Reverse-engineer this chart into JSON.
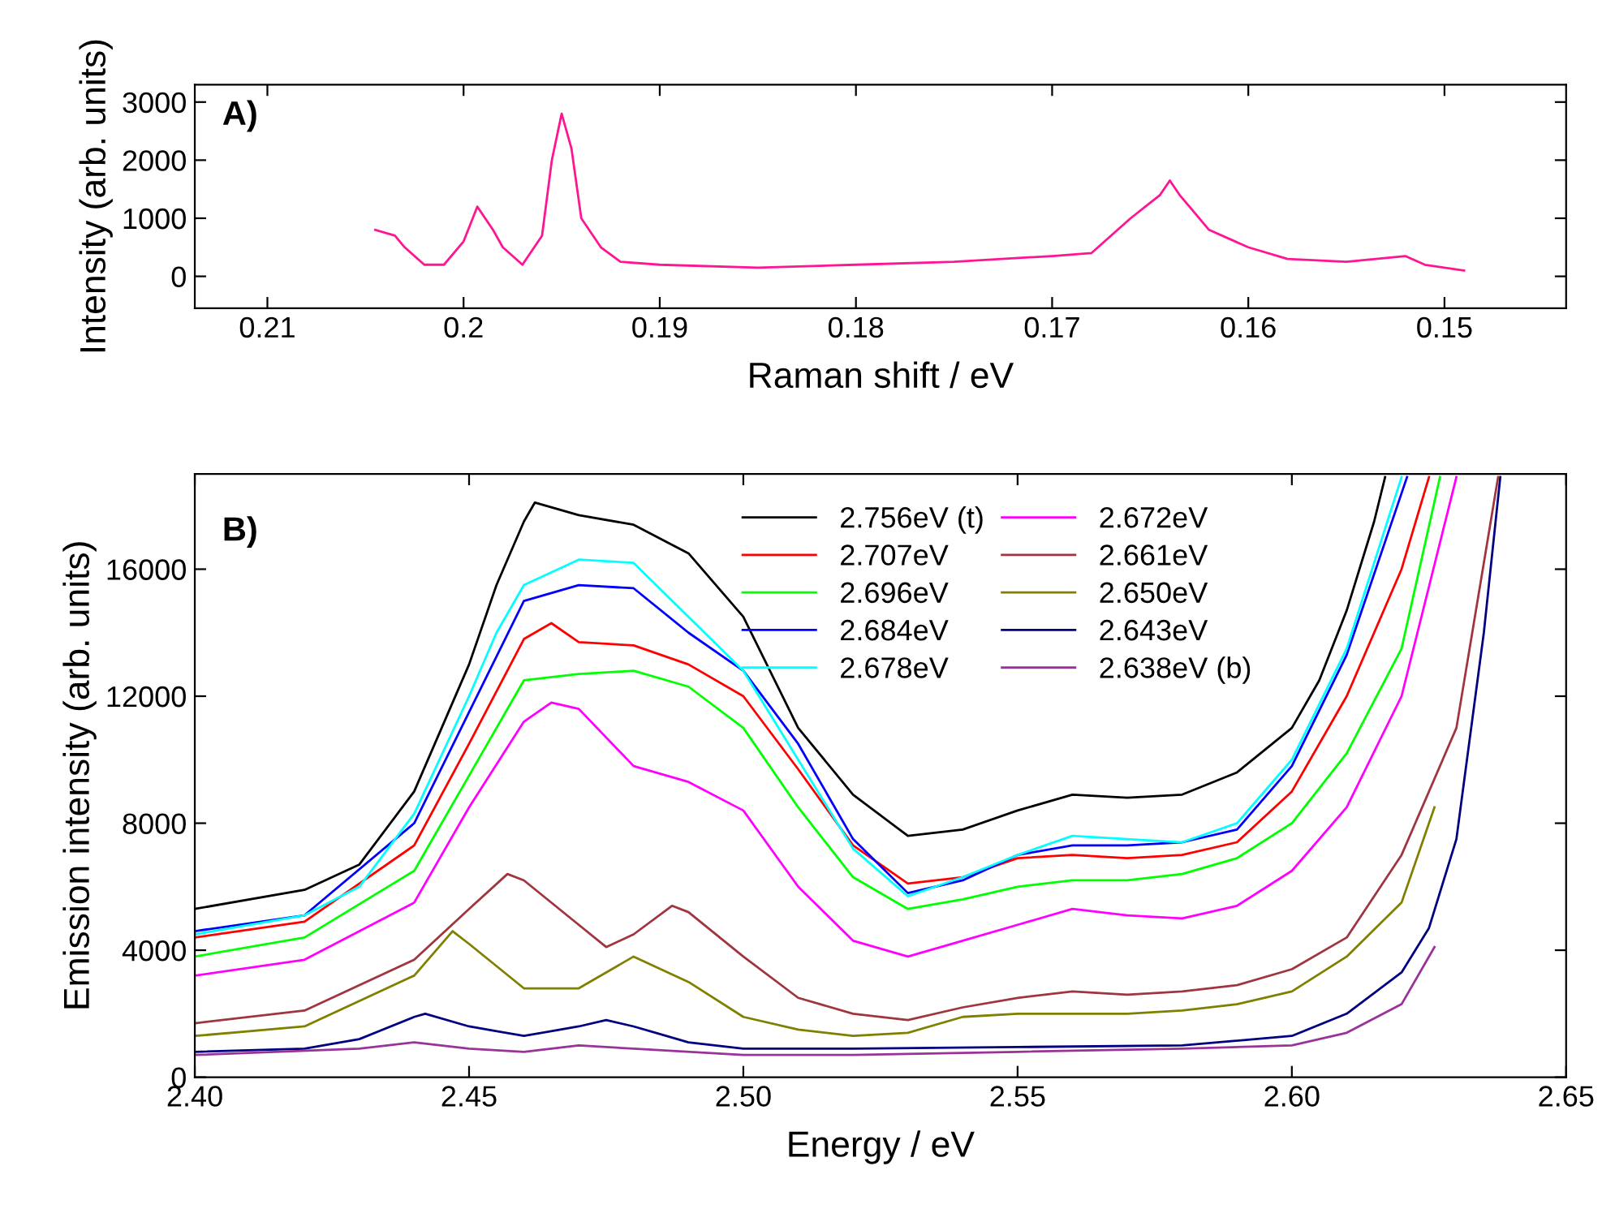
{
  "chart_data": [
    {
      "type": "line",
      "xlabel": "Raman shift / eV",
      "ylabel": "Intensity (arb. units)",
      "annotations": [
        "A)"
      ],
      "xlim": [
        0.2137,
        0.1438
      ],
      "ylim": [
        -550,
        3300
      ],
      "xticks": [
        0.21,
        0.2,
        0.19,
        0.18,
        0.17,
        0.16,
        0.15
      ],
      "yticks": [
        0,
        1000,
        2000,
        3000
      ],
      "grid": false,
      "legend": false,
      "marker": "none",
      "line_style": "solid",
      "series": [
        {
          "color": "#ff1493",
          "x": [
            0.2045,
            0.2035,
            0.203,
            0.202,
            0.201,
            0.2,
            0.1993,
            0.1985,
            0.198,
            0.197,
            0.196,
            0.1955,
            0.195,
            0.1945,
            0.194,
            0.193,
            0.192,
            0.19,
            0.185,
            0.18,
            0.175,
            0.17,
            0.168,
            0.166,
            0.1645,
            0.164,
            0.1635,
            0.163,
            0.162,
            0.16,
            0.158,
            0.155,
            0.152,
            0.151,
            0.149
          ],
          "values": [
            800,
            700,
            500,
            200,
            200,
            600,
            1200,
            800,
            500,
            200,
            700,
            2000,
            2800,
            2200,
            1000,
            500,
            250,
            200,
            150,
            200,
            250,
            350,
            400,
            1000,
            1400,
            1650,
            1400,
            1200,
            800,
            500,
            300,
            250,
            350,
            200,
            100
          ]
        }
      ]
    },
    {
      "type": "line",
      "xlabel": "Energy / eV",
      "ylabel": "Emission intensity (arb. units)",
      "annotations": [
        "B)"
      ],
      "xlim": [
        2.4,
        2.65
      ],
      "ylim": [
        0,
        19000
      ],
      "xticks": [
        {
          "value": 2.4,
          "label": "2.40"
        },
        2.45,
        {
          "value": 2.5,
          "label": "2.50"
        },
        2.55,
        {
          "value": 2.6,
          "label": "2.60"
        },
        2.65
      ],
      "yticks": [
        0,
        4000,
        8000,
        12000,
        16000
      ],
      "grid": false,
      "legend": "top right",
      "marker": "none",
      "line_style": "solid",
      "series": [
        {
          "name": "2.756eV (t)",
          "color": "#000000",
          "x": [
            2.4,
            2.42,
            2.43,
            2.44,
            2.45,
            2.455,
            2.46,
            2.462,
            2.47,
            2.48,
            2.49,
            2.5,
            2.51,
            2.52,
            2.53,
            2.54,
            2.55,
            2.56,
            2.57,
            2.58,
            2.59,
            2.6,
            2.605,
            2.61,
            2.615,
            2.617
          ],
          "values": [
            5300,
            5900,
            6700,
            9000,
            13000,
            15500,
            17500,
            18100,
            17700,
            17400,
            16500,
            14500,
            11000,
            8900,
            7600,
            7800,
            8400,
            8900,
            8800,
            8900,
            9600,
            11000,
            12500,
            14700,
            17500,
            18900
          ]
        },
        {
          "name": "2.707eV",
          "color": "#ff0000",
          "x": [
            2.4,
            2.42,
            2.44,
            2.45,
            2.46,
            2.465,
            2.47,
            2.48,
            2.49,
            2.5,
            2.51,
            2.52,
            2.53,
            2.54,
            2.55,
            2.56,
            2.57,
            2.58,
            2.59,
            2.6,
            2.61,
            2.62,
            2.625
          ],
          "values": [
            4400,
            4900,
            7300,
            10500,
            13800,
            14300,
            13700,
            13600,
            13000,
            12000,
            9700,
            7300,
            6100,
            6300,
            6900,
            7000,
            6900,
            7000,
            7400,
            9000,
            12000,
            16000,
            18900
          ]
        },
        {
          "name": "2.696eV",
          "color": "#00ff00",
          "x": [
            2.4,
            2.42,
            2.44,
            2.45,
            2.46,
            2.47,
            2.48,
            2.49,
            2.5,
            2.51,
            2.52,
            2.53,
            2.54,
            2.55,
            2.56,
            2.57,
            2.58,
            2.59,
            2.6,
            2.61,
            2.62,
            2.627
          ],
          "values": [
            3800,
            4400,
            6500,
            9500,
            12500,
            12700,
            12800,
            12300,
            11000,
            8500,
            6300,
            5300,
            5600,
            6000,
            6200,
            6200,
            6400,
            6900,
            8000,
            10200,
            13500,
            18900
          ]
        },
        {
          "name": "2.684eV",
          "color": "#0000ff",
          "x": [
            2.4,
            2.42,
            2.44,
            2.45,
            2.46,
            2.47,
            2.48,
            2.49,
            2.5,
            2.51,
            2.52,
            2.53,
            2.54,
            2.55,
            2.56,
            2.57,
            2.58,
            2.59,
            2.6,
            2.61,
            2.621
          ],
          "values": [
            4600,
            5100,
            8000,
            11500,
            15000,
            15500,
            15400,
            14000,
            12800,
            10500,
            7500,
            5800,
            6200,
            7000,
            7300,
            7300,
            7400,
            7800,
            9800,
            13300,
            18900
          ]
        },
        {
          "name": "2.678eV",
          "color": "#00ffff",
          "x": [
            2.4,
            2.42,
            2.43,
            2.44,
            2.45,
            2.455,
            2.46,
            2.47,
            2.48,
            2.49,
            2.5,
            2.51,
            2.52,
            2.53,
            2.54,
            2.55,
            2.56,
            2.57,
            2.58,
            2.59,
            2.6,
            2.61,
            2.62
          ],
          "values": [
            4500,
            5100,
            6000,
            8300,
            12000,
            14000,
            15500,
            16300,
            16200,
            14500,
            12800,
            10000,
            7200,
            5700,
            6300,
            7000,
            7600,
            7500,
            7400,
            8000,
            10000,
            13500,
            18900
          ]
        },
        {
          "name": "2.672eV",
          "color": "#ff00ff",
          "x": [
            2.4,
            2.42,
            2.44,
            2.45,
            2.46,
            2.465,
            2.47,
            2.48,
            2.49,
            2.5,
            2.51,
            2.52,
            2.53,
            2.54,
            2.55,
            2.56,
            2.57,
            2.58,
            2.59,
            2.6,
            2.61,
            2.62,
            2.63
          ],
          "values": [
            3200,
            3700,
            5500,
            8500,
            11200,
            11800,
            11600,
            9800,
            9300,
            8400,
            6000,
            4300,
            3800,
            4300,
            4800,
            5300,
            5100,
            5000,
            5400,
            6500,
            8500,
            12000,
            18900
          ]
        },
        {
          "name": "2.661eV",
          "color": "#a0353f",
          "x": [
            2.4,
            2.42,
            2.44,
            2.45,
            2.457,
            2.46,
            2.47,
            2.475,
            2.48,
            2.487,
            2.49,
            2.5,
            2.51,
            2.52,
            2.53,
            2.54,
            2.55,
            2.56,
            2.57,
            2.58,
            2.59,
            2.6,
            2.61,
            2.62,
            2.63,
            2.6376
          ],
          "values": [
            1700,
            2100,
            3700,
            5300,
            6400,
            6200,
            4800,
            4100,
            4500,
            5400,
            5200,
            3800,
            2500,
            2000,
            1800,
            2200,
            2500,
            2700,
            2600,
            2700,
            2900,
            3400,
            4400,
            7000,
            11000,
            18900
          ]
        },
        {
          "name": "2.650eV",
          "color": "#808000",
          "x": [
            2.4,
            2.42,
            2.44,
            2.447,
            2.45,
            2.46,
            2.47,
            2.48,
            2.49,
            2.5,
            2.51,
            2.52,
            2.53,
            2.54,
            2.55,
            2.56,
            2.57,
            2.58,
            2.59,
            2.6,
            2.61,
            2.62,
            2.626
          ],
          "values": [
            1300,
            1600,
            3200,
            4600,
            4200,
            2800,
            2800,
            3800,
            3000,
            1900,
            1500,
            1300,
            1400,
            1900,
            2000,
            2000,
            2000,
            2100,
            2300,
            2700,
            3800,
            5500,
            8500
          ]
        },
        {
          "name": "2.643eV",
          "color": "#000080",
          "x": [
            2.4,
            2.42,
            2.43,
            2.44,
            2.442,
            2.45,
            2.46,
            2.47,
            2.475,
            2.48,
            2.49,
            2.5,
            2.52,
            2.55,
            2.58,
            2.6,
            2.61,
            2.62,
            2.625,
            2.63,
            2.635,
            2.638
          ],
          "values": [
            800,
            900,
            1200,
            1900,
            2000,
            1600,
            1300,
            1600,
            1800,
            1600,
            1100,
            900,
            900,
            950,
            1000,
            1300,
            2000,
            3300,
            4700,
            7500,
            14000,
            18900
          ]
        },
        {
          "name": "2.638eV (b)",
          "color": "#993399",
          "x": [
            2.4,
            2.43,
            2.44,
            2.45,
            2.46,
            2.47,
            2.48,
            2.5,
            2.52,
            2.55,
            2.58,
            2.6,
            2.61,
            2.62,
            2.626
          ],
          "values": [
            700,
            900,
            1100,
            900,
            800,
            1000,
            900,
            700,
            700,
            800,
            900,
            1000,
            1400,
            2300,
            4100
          ]
        }
      ]
    }
  ]
}
